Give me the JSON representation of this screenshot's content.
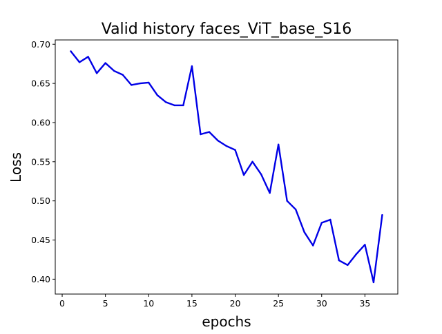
{
  "chart_data": {
    "type": "line",
    "title": "Valid history faces_ViT_base_S16",
    "xlabel": "epochs",
    "ylabel": "Loss",
    "xlim": [
      -0.8,
      38.8
    ],
    "ylim": [
      0.381,
      0.7055
    ],
    "xticks": [
      0,
      5,
      10,
      15,
      20,
      25,
      30,
      35
    ],
    "yticks": [
      0.4,
      0.45,
      0.5,
      0.55,
      0.6,
      0.65,
      0.7
    ],
    "ytick_labels": [
      "0.40",
      "0.45",
      "0.50",
      "0.55",
      "0.60",
      "0.65",
      "0.70"
    ],
    "grid": false,
    "line_color": "#0000e6",
    "x": [
      1,
      2,
      3,
      4,
      5,
      6,
      7,
      8,
      9,
      10,
      11,
      12,
      13,
      14,
      15,
      16,
      17,
      18,
      19,
      20,
      21,
      22,
      23,
      24,
      25,
      26,
      27,
      28,
      29,
      30,
      31,
      32,
      33,
      34,
      35,
      36,
      37
    ],
    "values": [
      0.691,
      0.677,
      0.684,
      0.663,
      0.676,
      0.666,
      0.661,
      0.648,
      0.65,
      0.651,
      0.635,
      0.626,
      0.622,
      0.622,
      0.672,
      0.585,
      0.588,
      0.577,
      0.57,
      0.565,
      0.533,
      0.55,
      0.534,
      0.51,
      0.572,
      0.5,
      0.489,
      0.46,
      0.443,
      0.472,
      0.476,
      0.424,
      0.418,
      0.432,
      0.444,
      0.396,
      0.482
    ]
  }
}
